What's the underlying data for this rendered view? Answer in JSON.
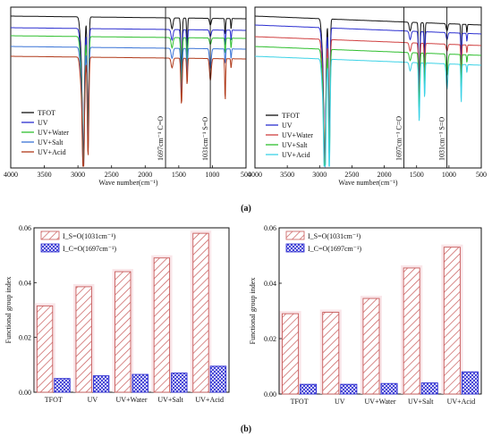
{
  "captions": {
    "a": "(a)",
    "b": "(b)"
  },
  "colors": {
    "TFOT": "#111111",
    "UV": "#2b2fd0",
    "UV+Water": "#2fbf2f",
    "UV+Salt": "#3a74d6",
    "UV+Acid": "#3cd2e6",
    "UV+Acid_left": "#b03a1a",
    "bar_so": "#c85a5a",
    "bar_co": "#2a2ad0",
    "so_glow": "#f6dce0"
  },
  "chart_data": [
    {
      "type": "line",
      "panel": "a-left",
      "xlabel": "Wave number(cm⁻¹)",
      "xlim": [
        4000,
        500
      ],
      "x_ticks": [
        4000,
        3500,
        3000,
        2500,
        2000,
        1500,
        1000,
        500
      ],
      "y_ticks": [],
      "legend_position": "bottom-left",
      "series": [
        {
          "name": "TFOT",
          "color": "#111111"
        },
        {
          "name": "UV",
          "color": "#2b2fd0"
        },
        {
          "name": "UV+Water",
          "color": "#2fbf2f"
        },
        {
          "name": "UV+Salt",
          "color": "#3a74d6"
        },
        {
          "name": "UV+Acid",
          "color": "#b03a1a"
        }
      ],
      "reference_lines": [
        {
          "x": 1697,
          "label": "1697cm⁻¹ C=O"
        },
        {
          "x": 1031,
          "label": "1031cm⁻¹ S=O"
        }
      ]
    },
    {
      "type": "line",
      "panel": "a-right",
      "xlabel": "Wave number(cm⁻¹)",
      "xlim": [
        4000,
        500
      ],
      "x_ticks": [
        4000,
        3500,
        3000,
        2500,
        2000,
        1500,
        1000,
        500
      ],
      "y_ticks": [],
      "legend_position": "bottom-left",
      "series": [
        {
          "name": "TFOT",
          "color": "#111111"
        },
        {
          "name": "UV",
          "color": "#2b2fd0"
        },
        {
          "name": "UV+Water",
          "color": "#d04040"
        },
        {
          "name": "UV+Salt",
          "color": "#2fbf2f"
        },
        {
          "name": "UV+Acid",
          "color": "#3cd2e6"
        }
      ],
      "reference_lines": [
        {
          "x": 1697,
          "label": "1697cm⁻¹ C=O"
        },
        {
          "x": 1031,
          "label": "1031cm⁻¹ S=O"
        }
      ]
    },
    {
      "type": "bar",
      "panel": "b-left",
      "ylabel": "Functional group index",
      "ylim": [
        0,
        0.06
      ],
      "y_ticks": [
        "0.00",
        "0.02",
        "0.04",
        "0.06"
      ],
      "categories": [
        "TFOT",
        "UV",
        "UV+Water",
        "UV+Salt",
        "UV+Acid"
      ],
      "legend_position": "top-left",
      "series": [
        {
          "name": "I_S=O(1031cm⁻¹)",
          "values": [
            0.0315,
            0.0385,
            0.044,
            0.049,
            0.058
          ]
        },
        {
          "name": "I_C=O(1697cm⁻¹)",
          "values": [
            0.005,
            0.006,
            0.0065,
            0.007,
            0.0095
          ]
        }
      ]
    },
    {
      "type": "bar",
      "panel": "b-right",
      "ylabel": "Functional group index",
      "ylim": [
        0,
        0.06
      ],
      "y_ticks": [
        "0.00",
        "0.02",
        "0.04",
        "0.06"
      ],
      "categories": [
        "TFOT",
        "UV",
        "UV+Water",
        "UV+Salt",
        "UV+Acid"
      ],
      "legend_position": "top-left",
      "series": [
        {
          "name": "I_S=O(1031cm⁻¹)",
          "values": [
            0.029,
            0.0295,
            0.0345,
            0.0455,
            0.053
          ]
        },
        {
          "name": "I_C=O(1697cm⁻¹)",
          "values": [
            0.0035,
            0.0035,
            0.0038,
            0.004,
            0.008
          ]
        }
      ]
    }
  ]
}
